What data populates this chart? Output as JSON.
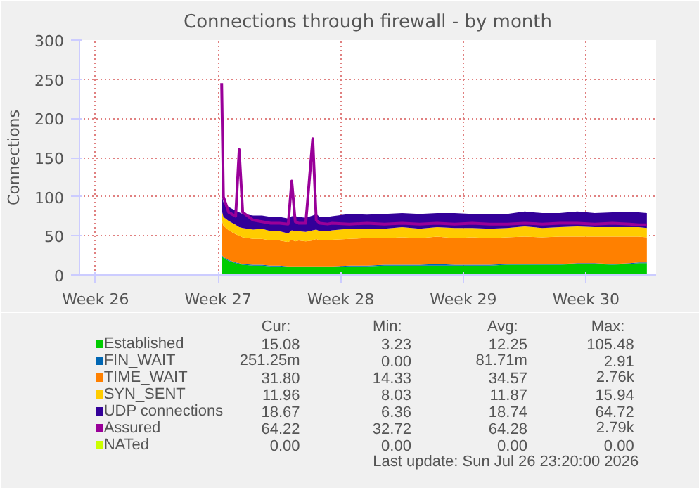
{
  "chart_data": {
    "type": "area",
    "stacked": true,
    "title": "Connections through firewall - by month",
    "ylabel": "Connections",
    "x": [
      "2026-07-02T16:48",
      "2026-07-02T19:12",
      "2026-07-03T02:24",
      "2026-07-03T12:00",
      "2026-07-03T16:48",
      "2026-07-03T21:36",
      "2026-07-04T12:00",
      "2026-07-05T00:00",
      "2026-07-05T12:00",
      "2026-07-06T00:00",
      "2026-07-06T12:00",
      "2026-07-06T16:48",
      "2026-07-06T21:36",
      "2026-07-07T02:24",
      "2026-07-07T12:00",
      "2026-07-07T21:36",
      "2026-07-08T02:24",
      "2026-07-08T07:12",
      "2026-07-08T18:00",
      "2026-07-09T00:00",
      "2026-07-10T00:00",
      "2026-07-11T00:00",
      "2026-07-12T00:00",
      "2026-07-13T00:00",
      "2026-07-14T00:00",
      "2026-07-15T00:00",
      "2026-07-16T00:00",
      "2026-07-17T00:00",
      "2026-07-18T00:00",
      "2026-07-19T00:00",
      "2026-07-20T00:00",
      "2026-07-21T00:00",
      "2026-07-22T00:00",
      "2026-07-23T00:00",
      "2026-07-24T00:00",
      "2026-07-25T00:00",
      "2026-07-26T00:00",
      "2026-07-26T12:00",
      "2026-07-26T23:20"
    ],
    "xlim": [
      "2026-06-24T14:00",
      "2026-07-27T12:00"
    ],
    "xticks": [
      {
        "value": "2026-06-25T12:00",
        "label": "Week 26"
      },
      {
        "value": "2026-07-02T12:00",
        "label": "Week 27"
      },
      {
        "value": "2026-07-09T12:00",
        "label": "Week 28"
      },
      {
        "value": "2026-07-16T12:00",
        "label": "Week 29"
      },
      {
        "value": "2026-07-23T12:00",
        "label": "Week 30"
      }
    ],
    "ylim": [
      0,
      300
    ],
    "yticks": [
      0,
      50,
      100,
      150,
      200,
      250,
      300
    ],
    "grid": true,
    "legend": "bottom",
    "series": [
      {
        "name": "Established",
        "color": "#00cc00",
        "values": [
          25,
          22,
          18,
          15,
          14,
          13,
          12,
          12,
          11,
          11,
          10,
          10,
          10,
          10,
          10,
          10,
          10,
          10,
          10,
          10,
          11,
          11,
          12,
          12,
          12,
          12,
          12,
          12,
          12,
          13,
          13,
          13,
          13,
          14,
          14,
          13,
          14,
          15,
          15
        ]
      },
      {
        "name": "FIN_WAIT",
        "color": "#0066b3",
        "values": [
          1,
          1,
          1,
          1,
          1,
          1,
          1,
          1,
          1,
          1,
          1,
          1,
          1,
          1,
          1,
          1,
          1,
          1,
          1,
          1,
          1,
          1,
          1,
          1,
          1,
          2,
          1,
          1,
          1,
          1,
          1,
          1,
          1,
          1,
          1,
          1,
          1,
          1,
          1
        ]
      },
      {
        "name": "TIME_WAIT",
        "color": "#ff8000",
        "values": [
          45,
          40,
          38,
          36,
          35,
          34,
          33,
          33,
          32,
          32,
          31,
          34,
          32,
          33,
          32,
          33,
          35,
          33,
          33,
          34,
          34,
          35,
          34,
          35,
          34,
          35,
          34,
          35,
          34,
          34,
          35,
          34,
          35,
          34,
          34,
          35,
          34,
          33,
          32
        ]
      },
      {
        "name": "SYN_SENT",
        "color": "#ffcc00",
        "values": [
          12,
          11,
          12,
          12,
          11,
          12,
          12,
          13,
          12,
          12,
          11,
          12,
          13,
          12,
          12,
          13,
          12,
          12,
          12,
          12,
          13,
          12,
          12,
          13,
          12,
          12,
          13,
          12,
          12,
          12,
          13,
          12,
          12,
          13,
          12,
          12,
          12,
          12,
          12
        ]
      },
      {
        "name": "UDP connections",
        "color": "#330099",
        "values": [
          20,
          19,
          18,
          18,
          19,
          18,
          18,
          17,
          18,
          18,
          19,
          18,
          19,
          18,
          18,
          19,
          20,
          18,
          18,
          18,
          19,
          18,
          19,
          18,
          19,
          18,
          19,
          18,
          19,
          18,
          19,
          19,
          18,
          19,
          18,
          19,
          19,
          19,
          19
        ]
      },
      {
        "name": "Assured",
        "type": "line",
        "color": "#990099",
        "values": [
          245,
          100,
          80,
          75,
          160,
          80,
          70,
          68,
          66,
          66,
          65,
          120,
          68,
          66,
          66,
          174,
          70,
          66,
          65,
          66,
          65,
          66,
          65,
          66,
          65,
          66,
          65,
          66,
          65,
          65,
          66,
          65,
          66,
          66,
          65,
          66,
          65,
          64,
          64
        ]
      },
      {
        "name": "NATed",
        "type": "line",
        "color": "#ccff00",
        "values": [
          0,
          0,
          0,
          0,
          0,
          0,
          0,
          0,
          0,
          0,
          0,
          0,
          0,
          0,
          0,
          0,
          0,
          0,
          0,
          0,
          0,
          0,
          0,
          0,
          0,
          0,
          0,
          0,
          0,
          0,
          0,
          0,
          0,
          0,
          0,
          0,
          0,
          0,
          0
        ]
      }
    ],
    "annotations": [
      "Cur:",
      "Min:",
      "Avg:",
      "Max:",
      "15.08",
      "3.23",
      "12.25",
      "105.48",
      "251.25m",
      "0.00",
      "81.71m",
      "2.91",
      "31.80",
      "14.33",
      "34.57",
      "2.76k",
      "11.96",
      "8.03",
      "11.87",
      "15.94",
      "18.67",
      "6.36",
      "18.74",
      "64.72",
      "64.22",
      "32.72",
      "64.28",
      "2.79k",
      "0.00",
      "0.00",
      "0.00",
      "0.00",
      "Last update: Sun Jul 26 23:20:00 2026"
    ]
  }
}
